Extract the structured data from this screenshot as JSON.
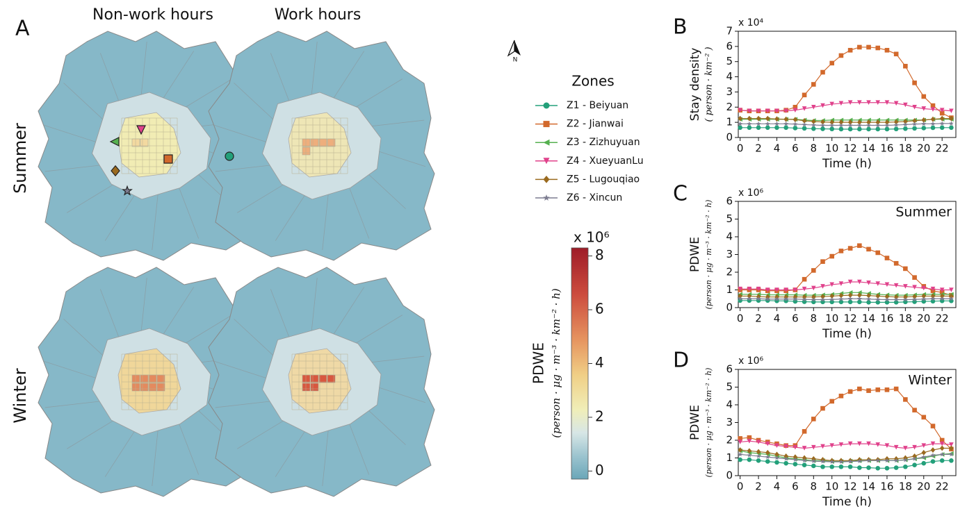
{
  "panel_labels": [
    "A",
    "B",
    "C",
    "D"
  ],
  "maps": {
    "columns": [
      "Non-work hours",
      "Work hours"
    ],
    "rows": [
      "Summer",
      "Winter"
    ],
    "north": "N"
  },
  "legend": {
    "title": "Zones"
  },
  "colorbar": {
    "label": "PDWE",
    "unit": "(person · μg · m⁻³ · km⁻² · h)",
    "multiplier": "x 10⁶",
    "lim": [
      -0.3,
      8.3
    ],
    "ticks": [
      0,
      2,
      4,
      6,
      8
    ]
  },
  "chart_data": [
    {
      "type": "line",
      "multiplier": "x 10⁴",
      "ylabel": "Stay density",
      "yunit": "( person · km⁻² )",
      "xlabel": "Time (h)",
      "x": [
        0,
        1,
        2,
        3,
        4,
        5,
        6,
        7,
        8,
        9,
        10,
        11,
        12,
        13,
        14,
        15,
        16,
        17,
        18,
        19,
        20,
        21,
        22,
        23
      ],
      "xlim": [
        -0.2,
        23.5
      ],
      "ylim": [
        0,
        7
      ],
      "xticks": [
        0,
        2,
        4,
        6,
        8,
        10,
        12,
        14,
        16,
        18,
        20,
        22
      ],
      "yticks": [
        0,
        1,
        2,
        3,
        4,
        5,
        6,
        7
      ],
      "series": [
        {
          "name": "Z1 - Beiyuan",
          "color": "#23a07a",
          "marker": "circle",
          "values": [
            0.65,
            0.65,
            0.65,
            0.65,
            0.65,
            0.65,
            0.62,
            0.6,
            0.58,
            0.57,
            0.56,
            0.55,
            0.55,
            0.55,
            0.55,
            0.55,
            0.55,
            0.56,
            0.58,
            0.6,
            0.62,
            0.64,
            0.65,
            0.65
          ]
        },
        {
          "name": "Z2 - Jianwai",
          "color": "#d2692c",
          "marker": "square",
          "values": [
            1.8,
            1.75,
            1.75,
            1.75,
            1.75,
            1.8,
            2.0,
            2.8,
            3.5,
            4.3,
            4.9,
            5.4,
            5.75,
            5.95,
            5.95,
            5.9,
            5.75,
            5.5,
            4.7,
            3.6,
            2.7,
            2.1,
            1.6,
            1.3
          ]
        },
        {
          "name": "Z3 - Zizhuyuan",
          "color": "#55b04f",
          "marker": "triangle-left",
          "values": [
            1.2,
            1.2,
            1.2,
            1.2,
            1.2,
            1.2,
            1.2,
            1.15,
            1.12,
            1.12,
            1.15,
            1.15,
            1.15,
            1.15,
            1.15,
            1.15,
            1.15,
            1.15,
            1.15,
            1.15,
            1.15,
            1.2,
            1.2,
            1.2
          ]
        },
        {
          "name": "Z4 - XueyuanLu",
          "color": "#e0418b",
          "marker": "triangle-down",
          "values": [
            1.8,
            1.75,
            1.75,
            1.75,
            1.75,
            1.75,
            1.8,
            1.9,
            2.0,
            2.1,
            2.2,
            2.25,
            2.3,
            2.3,
            2.3,
            2.3,
            2.3,
            2.25,
            2.15,
            2.0,
            1.9,
            1.85,
            1.8,
            1.75
          ]
        },
        {
          "name": "Z5 - Lugouqiao",
          "color": "#9a6a1f",
          "marker": "diamond",
          "values": [
            1.25,
            1.25,
            1.25,
            1.25,
            1.22,
            1.2,
            1.18,
            1.1,
            1.05,
            1.02,
            1.0,
            1.0,
            1.0,
            1.0,
            1.0,
            1.0,
            1.0,
            1.02,
            1.05,
            1.1,
            1.15,
            1.2,
            1.25,
            1.25
          ]
        },
        {
          "name": "Z6 - Xincun",
          "color": "#7c7c90",
          "marker": "star",
          "values": [
            0.9,
            0.9,
            0.9,
            0.9,
            0.9,
            0.9,
            0.88,
            0.85,
            0.82,
            0.8,
            0.8,
            0.8,
            0.8,
            0.8,
            0.8,
            0.8,
            0.8,
            0.82,
            0.85,
            0.88,
            0.9,
            0.9,
            0.92,
            0.92
          ]
        }
      ]
    },
    {
      "type": "line",
      "multiplier": "x 10⁶",
      "ylabel": "PDWE",
      "yunit": "(person · μg · m⁻³ · km⁻² · h)",
      "xlabel": "Time (h)",
      "annotation": "Summer",
      "x": [
        0,
        1,
        2,
        3,
        4,
        5,
        6,
        7,
        8,
        9,
        10,
        11,
        12,
        13,
        14,
        15,
        16,
        17,
        18,
        19,
        20,
        21,
        22,
        23
      ],
      "xlim": [
        -0.2,
        23.5
      ],
      "ylim": [
        0,
        6
      ],
      "xticks": [
        0,
        2,
        4,
        6,
        8,
        10,
        12,
        14,
        16,
        18,
        20,
        22
      ],
      "yticks": [
        0,
        1,
        2,
        3,
        4,
        5,
        6
      ],
      "series": [
        {
          "name": "Z1 - Beiyuan",
          "color": "#23a07a",
          "marker": "circle",
          "values": [
            0.4,
            0.4,
            0.4,
            0.4,
            0.38,
            0.38,
            0.35,
            0.33,
            0.32,
            0.32,
            0.32,
            0.32,
            0.32,
            0.32,
            0.3,
            0.3,
            0.3,
            0.3,
            0.32,
            0.33,
            0.35,
            0.36,
            0.38,
            0.38
          ]
        },
        {
          "name": "Z2 - Jianwai",
          "color": "#d2692c",
          "marker": "square",
          "values": [
            1.0,
            1.0,
            1.0,
            0.95,
            0.95,
            0.95,
            1.0,
            1.6,
            2.1,
            2.6,
            2.9,
            3.2,
            3.35,
            3.5,
            3.3,
            3.1,
            2.8,
            2.5,
            2.2,
            1.7,
            1.2,
            0.95,
            0.85,
            0.7
          ]
        },
        {
          "name": "Z3 - Zizhuyuan",
          "color": "#55b04f",
          "marker": "triangle-left",
          "values": [
            0.75,
            0.75,
            0.75,
            0.72,
            0.72,
            0.72,
            0.72,
            0.7,
            0.7,
            0.72,
            0.75,
            0.8,
            0.85,
            0.85,
            0.8,
            0.75,
            0.72,
            0.7,
            0.7,
            0.72,
            0.75,
            0.75,
            0.75,
            0.75
          ]
        },
        {
          "name": "Z4 - XueyuanLu",
          "color": "#e0418b",
          "marker": "triangle-down",
          "values": [
            1.05,
            1.05,
            1.05,
            1.0,
            1.0,
            1.0,
            1.0,
            1.05,
            1.1,
            1.2,
            1.3,
            1.35,
            1.45,
            1.45,
            1.4,
            1.35,
            1.3,
            1.25,
            1.2,
            1.15,
            1.1,
            1.05,
            1.0,
            1.0
          ]
        },
        {
          "name": "Z5 - Lugouqiao",
          "color": "#9a6a1f",
          "marker": "diamond",
          "values": [
            0.65,
            0.65,
            0.62,
            0.6,
            0.6,
            0.6,
            0.6,
            0.6,
            0.6,
            0.62,
            0.65,
            0.68,
            0.7,
            0.7,
            0.68,
            0.65,
            0.62,
            0.6,
            0.6,
            0.62,
            0.65,
            0.65,
            0.65,
            0.65
          ]
        },
        {
          "name": "Z6 - Xincun",
          "color": "#7c7c90",
          "marker": "star",
          "values": [
            0.5,
            0.5,
            0.5,
            0.48,
            0.48,
            0.48,
            0.48,
            0.46,
            0.45,
            0.45,
            0.46,
            0.48,
            0.5,
            0.5,
            0.48,
            0.46,
            0.45,
            0.45,
            0.45,
            0.46,
            0.48,
            0.5,
            0.5,
            0.5
          ]
        }
      ]
    },
    {
      "type": "line",
      "multiplier": "x 10⁶",
      "ylabel": "PDWE",
      "yunit": "(person · μg · m⁻³ · km⁻² · h)",
      "xlabel": "Time (h)",
      "annotation": "Winter",
      "x": [
        0,
        1,
        2,
        3,
        4,
        5,
        6,
        7,
        8,
        9,
        10,
        11,
        12,
        13,
        14,
        15,
        16,
        17,
        18,
        19,
        20,
        21,
        22,
        23
      ],
      "xlim": [
        -0.2,
        23.5
      ],
      "ylim": [
        0,
        6
      ],
      "xticks": [
        0,
        2,
        4,
        6,
        8,
        10,
        12,
        14,
        16,
        18,
        20,
        22
      ],
      "yticks": [
        0,
        1,
        2,
        3,
        4,
        5,
        6
      ],
      "series": [
        {
          "name": "Z1 - Beiyuan",
          "color": "#23a07a",
          "marker": "circle",
          "values": [
            0.9,
            0.9,
            0.85,
            0.8,
            0.75,
            0.7,
            0.65,
            0.6,
            0.55,
            0.5,
            0.5,
            0.5,
            0.5,
            0.45,
            0.45,
            0.42,
            0.42,
            0.45,
            0.5,
            0.6,
            0.7,
            0.8,
            0.85,
            0.85
          ]
        },
        {
          "name": "Z2 - Jianwai",
          "color": "#d2692c",
          "marker": "square",
          "values": [
            2.1,
            2.15,
            2.0,
            1.9,
            1.8,
            1.7,
            1.7,
            2.5,
            3.2,
            3.8,
            4.2,
            4.5,
            4.75,
            4.9,
            4.8,
            4.85,
            4.85,
            4.9,
            4.3,
            3.7,
            3.3,
            2.8,
            2.0,
            1.5
          ]
        },
        {
          "name": "Z3 - Zizhuyuan",
          "color": "#55b04f",
          "marker": "triangle-left",
          "values": [
            1.4,
            1.3,
            1.25,
            1.2,
            1.1,
            1.0,
            0.95,
            0.9,
            0.85,
            0.85,
            0.8,
            0.8,
            0.82,
            0.85,
            0.85,
            0.85,
            0.85,
            0.85,
            0.9,
            0.95,
            1.0,
            1.1,
            1.2,
            1.25
          ]
        },
        {
          "name": "Z4 - XueyuanLu",
          "color": "#e0418b",
          "marker": "triangle-down",
          "values": [
            1.9,
            1.95,
            1.9,
            1.8,
            1.7,
            1.65,
            1.6,
            1.55,
            1.6,
            1.65,
            1.7,
            1.75,
            1.8,
            1.8,
            1.8,
            1.75,
            1.7,
            1.6,
            1.55,
            1.6,
            1.7,
            1.8,
            1.8,
            1.75
          ]
        },
        {
          "name": "Z5 - Lugouqiao",
          "color": "#9a6a1f",
          "marker": "diamond",
          "values": [
            1.45,
            1.4,
            1.35,
            1.3,
            1.2,
            1.1,
            1.05,
            1.0,
            0.95,
            0.9,
            0.85,
            0.85,
            0.85,
            0.9,
            0.9,
            0.9,
            0.95,
            0.95,
            1.0,
            1.1,
            1.3,
            1.45,
            1.55,
            1.55
          ]
        },
        {
          "name": "Z6 - Xincun",
          "color": "#7c7c90",
          "marker": "star",
          "values": [
            1.2,
            1.15,
            1.1,
            1.05,
            1.0,
            0.95,
            0.9,
            0.85,
            0.82,
            0.8,
            0.78,
            0.78,
            0.8,
            0.82,
            0.85,
            0.85,
            0.85,
            0.85,
            0.88,
            0.95,
            1.05,
            1.15,
            1.2,
            1.2
          ]
        }
      ]
    }
  ]
}
